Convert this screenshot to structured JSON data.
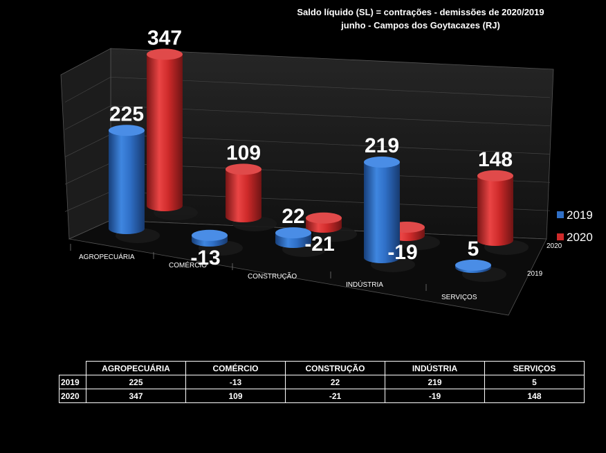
{
  "title_lines": [
    "Saldo líquido (SL) = contrações - demissões de 2020/2019",
    "junho  - Campos dos Goytacazes  (RJ)"
  ],
  "colors": {
    "2019": "#2f6fc6",
    "2020": "#cf2a2a",
    "background": "#000000"
  },
  "chart_data": {
    "type": "bar",
    "style": "3d-cylinder",
    "categories": [
      "AGROPECUÁRIA",
      "COMÉRCIO",
      "CONSTRUÇÃO",
      "INDÚSTRIA",
      "SERVIÇOS"
    ],
    "series": [
      {
        "name": "2019",
        "values": [
          225,
          -13,
          22,
          219,
          5
        ]
      },
      {
        "name": "2020",
        "values": [
          347,
          109,
          -21,
          -19,
          148
        ]
      }
    ],
    "depth_labels": [
      "2020",
      "2019"
    ],
    "legend": {
      "position": "right",
      "entries": [
        "2019",
        "2020"
      ]
    },
    "grid": true
  },
  "table": {
    "headers": [
      "AGROPECUÁRIA",
      "COMÉRCIO",
      "CONSTRUÇÃO",
      "INDÚSTRIA",
      "SERVIÇOS"
    ],
    "rows": [
      {
        "label": "2019",
        "values": [
          "225",
          "-13",
          "22",
          "219",
          "5"
        ]
      },
      {
        "label": "2020",
        "values": [
          "347",
          "109",
          "-21",
          "-19",
          "148"
        ]
      }
    ]
  }
}
